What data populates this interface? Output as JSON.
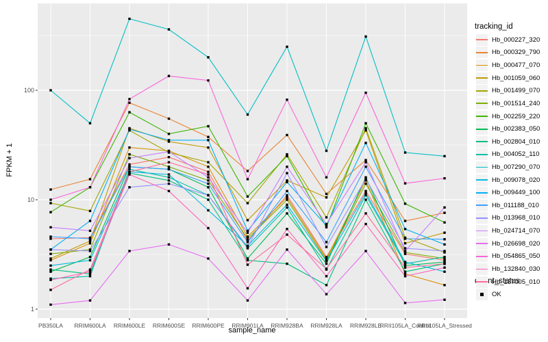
{
  "chart_data": {
    "type": "line",
    "title": "",
    "xlabel": "sample_name",
    "ylabel": "FPKM + 1",
    "y_scale": "log10",
    "grid": true,
    "legend_position": "right",
    "categories": [
      "PB350LA",
      "RRIM600LA",
      "RRIM600LE",
      "RRIM600SE",
      "RRIM600PE",
      "RRIM901LA",
      "RRIM928BA",
      "RRIM928LA",
      "RRIM928LE",
      "RRII105LA_Control",
      "RRII105LA_Stressed"
    ],
    "y_axis": {
      "tick_labels": [
        "1",
        "10",
        "100"
      ],
      "tick_values": [
        1,
        10,
        100
      ],
      "minor_tick_values": [
        3.162,
        31.623,
        316.228
      ],
      "range_log10": [
        -0.08,
        2.79
      ]
    },
    "series": [
      {
        "name": "Hb_000227_320",
        "color": "#F8766D",
        "values": [
          4.4,
          4.5,
          21,
          24.5,
          18,
          4.2,
          11,
          3.0,
          12,
          3.2,
          2.8
        ]
      },
      {
        "name": "Hb_000329_790",
        "color": "#EA8331",
        "values": [
          12.4,
          15.4,
          77,
          55,
          37.5,
          18.3,
          39,
          11.3,
          23,
          6.4,
          7.6
        ]
      },
      {
        "name": "Hb_000477_070",
        "color": "#D89000",
        "values": [
          2.8,
          4.0,
          30,
          28,
          20,
          4.6,
          10.5,
          2.9,
          15,
          2.1,
          1.66
        ]
      },
      {
        "name": "Hb_001059_060",
        "color": "#C09B00",
        "values": [
          2.9,
          4.2,
          45,
          34,
          30,
          6.5,
          15,
          10.5,
          43,
          4.0,
          5.0
        ]
      },
      {
        "name": "Hb_001499_070",
        "color": "#A3A500",
        "values": [
          9.3,
          7.9,
          43,
          27,
          22,
          9.3,
          26,
          6.9,
          45,
          4.5,
          3.3
        ]
      },
      {
        "name": "Hb_001514_240",
        "color": "#7CAE00",
        "values": [
          3.2,
          3.5,
          26,
          20,
          15,
          4.4,
          10,
          2.8,
          14,
          3.3,
          2.9
        ]
      },
      {
        "name": "Hb_002259_220",
        "color": "#39B600",
        "values": [
          7.7,
          13,
          63,
          40,
          47,
          10.7,
          25,
          5.6,
          50,
          9.2,
          6.2
        ]
      },
      {
        "name": "Hb_002383_050",
        "color": "#00BB4E",
        "values": [
          2.2,
          3.0,
          20,
          19,
          13,
          2.9,
          7.5,
          2.6,
          16,
          2.5,
          2.7
        ]
      },
      {
        "name": "Hb_002804_010",
        "color": "#00BF7D",
        "values": [
          2.3,
          2.1,
          17.5,
          15,
          10,
          2.8,
          2.6,
          1.66,
          10,
          2.2,
          2.6
        ]
      },
      {
        "name": "Hb_004052_110",
        "color": "#00C1A3",
        "values": [
          1.9,
          2.0,
          19,
          16,
          11,
          3.6,
          8.5,
          2.3,
          11,
          2.6,
          3.0
        ]
      },
      {
        "name": "Hb_007290_070",
        "color": "#00BFC4",
        "values": [
          100,
          50,
          450,
          360,
          200,
          60,
          250,
          28,
          310,
          27,
          25
        ]
      },
      {
        "name": "Hb_009078_020",
        "color": "#00BAE0",
        "values": [
          2.5,
          2.8,
          18,
          17,
          8,
          3.8,
          9,
          2.75,
          11.5,
          2.7,
          2.2
        ]
      },
      {
        "name": "Hb_009449_100",
        "color": "#00B0F6",
        "values": [
          3.5,
          6.4,
          44,
          35,
          35,
          5.2,
          14.5,
          5.8,
          33,
          5.4,
          3.9
        ]
      },
      {
        "name": "Hb_011188_010",
        "color": "#35A2FF",
        "values": [
          4.6,
          4.4,
          20,
          19,
          14,
          4.1,
          12,
          4.1,
          20,
          4.4,
          4.35
        ]
      },
      {
        "name": "Hb_013968_010",
        "color": "#9590FF",
        "values": [
          3.5,
          3.4,
          13,
          14,
          11,
          3.7,
          17.5,
          3.7,
          15.5,
          3.6,
          3.4
        ]
      },
      {
        "name": "Hb_024714_070",
        "color": "#C77CFF",
        "values": [
          5.6,
          5.2,
          24,
          27.5,
          16,
          5.0,
          20,
          6.0,
          22,
          3.4,
          8.5
        ]
      },
      {
        "name": "Hb_026698_020",
        "color": "#E76BF3",
        "values": [
          1.1,
          1.2,
          3.4,
          3.9,
          2.9,
          1.2,
          3.5,
          1.37,
          3.4,
          1.14,
          1.22
        ]
      },
      {
        "name": "Hb_054865_050",
        "color": "#FA62DB",
        "values": [
          10.0,
          13,
          83,
          135,
          123,
          15.4,
          82,
          16,
          95,
          14.1,
          15.7
        ]
      },
      {
        "name": "Hb_132840_030",
        "color": "#FF62BC",
        "values": [
          1.85,
          2.2,
          17,
          12,
          5.5,
          1.55,
          5.4,
          2.0,
          6.0,
          2.0,
          2.4
        ]
      },
      {
        "name": "Hb_187005_010",
        "color": "#FF6A98",
        "values": [
          1.5,
          2.3,
          18,
          22,
          17,
          2.55,
          4.8,
          2.34,
          7.5,
          2.4,
          2.6
        ]
      }
    ],
    "legend": {
      "color_title": "tracking_id",
      "shape_title": "quant_status",
      "shape_items": [
        {
          "label": "OK",
          "shape": "filled-square",
          "color": "#000000"
        }
      ]
    },
    "colors": {
      "panel_bg": "#EBEBEB",
      "grid": "#FFFFFF",
      "legend_key_bg": "#F2F2F2",
      "tick_mark": "#333333",
      "tick_label": "#4D4D4D",
      "marker": "#000000"
    }
  }
}
